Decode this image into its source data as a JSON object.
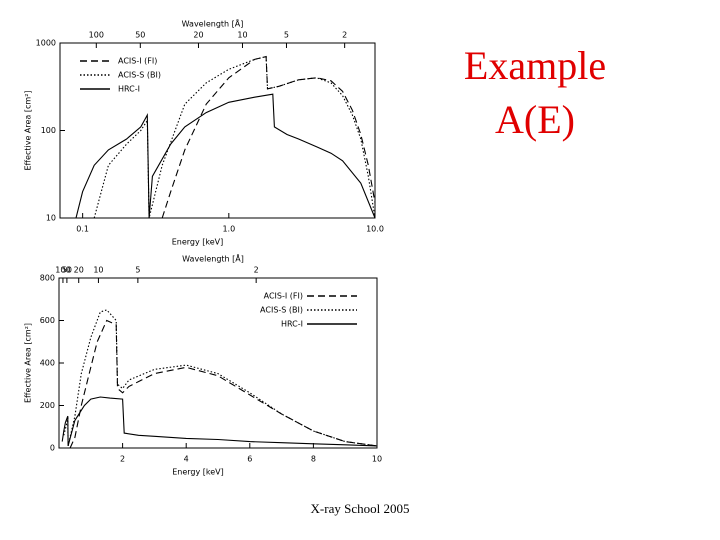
{
  "slide": {
    "title_lines": [
      "Example",
      "A(E)"
    ],
    "footer": "X-ray School 2005"
  },
  "chart_data": [
    {
      "type": "line",
      "xscale": "log",
      "yscale": "log",
      "xlabel": "Energy [keV]",
      "ylabel": "Effective Area [cm²]",
      "x2label": "Wavelength [Å]",
      "xlim": [
        0.07,
        10
      ],
      "ylim": [
        10,
        1000
      ],
      "xticks": [
        0.1,
        {
          "value": 1.0,
          "label": "1.0"
        },
        {
          "value": 10.0,
          "label": "10.0"
        }
      ],
      "yticks": [
        10,
        100,
        1000
      ],
      "x2ticks": [
        {
          "value": 0.124,
          "label": "100"
        },
        {
          "value": 0.248,
          "label": "50"
        },
        {
          "value": 0.62,
          "label": "20"
        },
        {
          "value": 1.24,
          "label": "10"
        },
        {
          "value": 2.48,
          "label": "5"
        },
        {
          "value": 6.2,
          "label": "2"
        }
      ],
      "legend": "upper left",
      "series": [
        {
          "name": "ACIS-I (FI)",
          "color": "#000000",
          "style": "dashed",
          "x": [
            0.35,
            0.4,
            0.5,
            0.7,
            1,
            1.5,
            1.8,
            1.84,
            2.2,
            3,
            4,
            5,
            6,
            7,
            8,
            9,
            10
          ],
          "values": [
            10,
            20,
            60,
            200,
            400,
            650,
            700,
            300,
            320,
            380,
            400,
            370,
            280,
            170,
            90,
            40,
            15
          ]
        },
        {
          "name": "ACIS-S (BI)",
          "color": "#000000",
          "style": "dotted",
          "x": [
            0.12,
            0.15,
            0.2,
            0.25,
            0.277,
            0.285,
            0.35,
            0.5,
            0.7,
            1.0,
            1.5,
            1.8,
            1.84,
            2.2,
            3,
            4,
            5,
            6,
            7,
            8,
            9,
            10
          ],
          "values": [
            10,
            40,
            70,
            100,
            130,
            10,
            40,
            200,
            350,
            500,
            650,
            700,
            300,
            320,
            380,
            400,
            350,
            250,
            150,
            80,
            30,
            10
          ]
        },
        {
          "name": "HRC-I",
          "color": "#000000",
          "style": "solid",
          "x": [
            0.09,
            0.1,
            0.12,
            0.15,
            0.2,
            0.25,
            0.277,
            0.285,
            0.3,
            0.4,
            0.5,
            0.7,
            1.0,
            1.5,
            2.0,
            2.05,
            2.5,
            3,
            4,
            5,
            6,
            8,
            10
          ],
          "values": [
            10,
            20,
            40,
            60,
            80,
            110,
            150,
            10,
            30,
            70,
            110,
            160,
            210,
            240,
            260,
            110,
            90,
            80,
            65,
            55,
            45,
            25,
            10
          ]
        }
      ]
    },
    {
      "type": "line",
      "xscale": "linear",
      "yscale": "linear",
      "xlabel": "Energy [keV]",
      "ylabel": "Effective Area [cm²]",
      "x2label": "Wavelength [Å]",
      "xlim": [
        0,
        10
      ],
      "ylim": [
        0,
        800
      ],
      "xticks": [
        2,
        4,
        6,
        8,
        10
      ],
      "yticks": [
        0,
        200,
        400,
        600,
        800
      ],
      "x2ticks": [
        {
          "value": 0.124,
          "label": "100"
        },
        {
          "value": 0.248,
          "label": "50"
        },
        {
          "value": 0.62,
          "label": "20"
        },
        {
          "value": 1.24,
          "label": "10"
        },
        {
          "value": 2.48,
          "label": "5"
        },
        {
          "value": 6.2,
          "label": "2"
        }
      ],
      "legend": "upper right",
      "series": [
        {
          "name": "ACIS-I (FI)",
          "color": "#000000",
          "style": "dashed",
          "x": [
            0.35,
            0.5,
            0.7,
            1.0,
            1.2,
            1.5,
            1.8,
            1.84,
            2.0,
            2.2,
            3,
            4,
            5,
            6,
            7,
            8,
            9,
            10
          ],
          "values": [
            0,
            50,
            200,
            380,
            500,
            600,
            580,
            280,
            260,
            290,
            350,
            380,
            340,
            250,
            160,
            80,
            30,
            10
          ]
        },
        {
          "name": "ACIS-S (BI)",
          "color": "#000000",
          "style": "dotted",
          "x": [
            0.15,
            0.25,
            0.277,
            0.285,
            0.5,
            0.7,
            1.0,
            1.3,
            1.5,
            1.8,
            1.84,
            2.0,
            2.2,
            3,
            4,
            5,
            6,
            7,
            8,
            9,
            10
          ],
          "values": [
            60,
            120,
            150,
            10,
            150,
            350,
            520,
            640,
            650,
            600,
            300,
            280,
            320,
            370,
            390,
            350,
            260,
            160,
            80,
            30,
            10
          ]
        },
        {
          "name": "HRC-I",
          "color": "#000000",
          "style": "solid",
          "x": [
            0.1,
            0.15,
            0.2,
            0.277,
            0.285,
            0.5,
            0.8,
            1.0,
            1.3,
            1.6,
            2.0,
            2.05,
            2.5,
            3,
            4,
            5,
            6,
            7,
            8,
            9,
            10
          ],
          "values": [
            30,
            80,
            120,
            150,
            10,
            130,
            200,
            230,
            240,
            235,
            230,
            70,
            60,
            55,
            45,
            40,
            30,
            25,
            20,
            15,
            10
          ]
        }
      ]
    }
  ]
}
